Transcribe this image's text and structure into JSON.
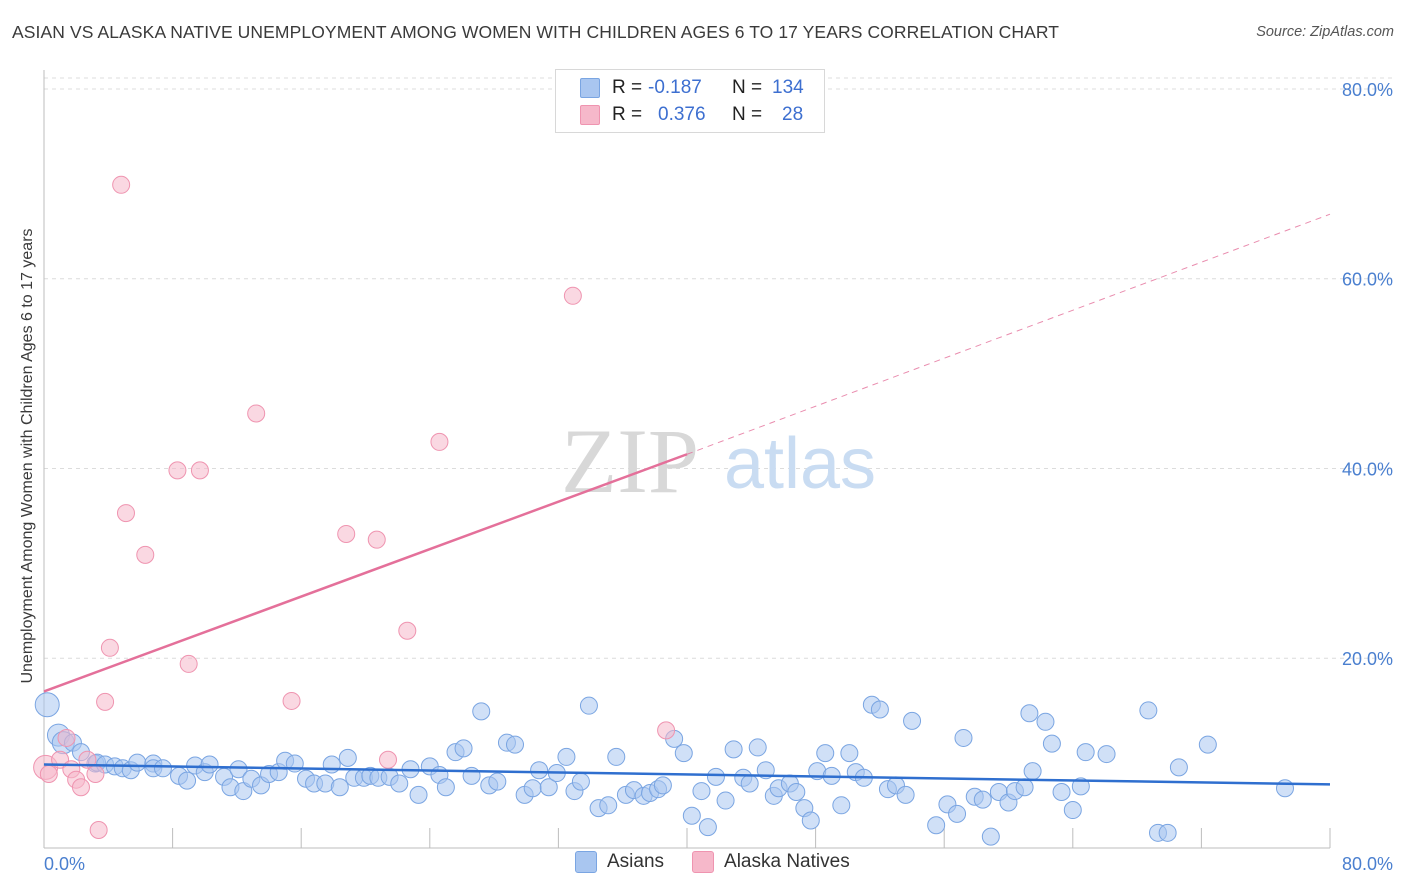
{
  "title": "ASIAN VS ALASKA NATIVE UNEMPLOYMENT AMONG WOMEN WITH CHILDREN AGES 6 TO 17 YEARS CORRELATION CHART",
  "source": "Source: ZipAtlas.com",
  "watermark": {
    "zip": "ZIP",
    "atlas": "atlas"
  },
  "legend": {
    "r_label": "R =",
    "n_label": "N =",
    "rows": [
      {
        "name": "Asians",
        "r": "-0.187",
        "n": "134",
        "color": "#a9c6f0"
      },
      {
        "name": "Alaska Natives",
        "r": "0.376",
        "n": "28",
        "color": "#f6b8ca"
      }
    ]
  },
  "colors": {
    "asian_fill": "#a9c6f0",
    "asian_stroke": "#7aa5e2",
    "asian_line": "#2f6fcf",
    "native_fill": "#f6b8ca",
    "native_stroke": "#ef94b0",
    "native_line": "#e4709a",
    "tick_text": "#4a7fcf",
    "grid": "#dcdcdc"
  },
  "chart_data": {
    "type": "scatter",
    "title": "ASIAN VS ALASKA NATIVE UNEMPLOYMENT AMONG WOMEN WITH CHILDREN AGES 6 TO 17 YEARS CORRELATION CHART",
    "xlabel": "",
    "ylabel": "Unemployment Among Women with Children Ages 6 to 17 years",
    "xlim": [
      0,
      80
    ],
    "ylim": [
      0,
      82
    ],
    "x_tick_labels": [
      "0.0%",
      "80.0%"
    ],
    "y_ticks": [
      20,
      40,
      60,
      80
    ],
    "y_tick_labels": [
      "20.0%",
      "40.0%",
      "60.0%",
      "80.0%"
    ],
    "series": [
      {
        "name": "Asians",
        "trend": {
          "x0": 0,
          "y0": 8.8,
          "x1": 80,
          "y1": 6.7
        },
        "points": [
          [
            0.2,
            15.1
          ],
          [
            0.9,
            11.9
          ],
          [
            1.2,
            11.1
          ],
          [
            1.8,
            11.1
          ],
          [
            2.3,
            10.1
          ],
          [
            3.2,
            8.9
          ],
          [
            3.3,
            9.0
          ],
          [
            3.8,
            8.8
          ],
          [
            4.4,
            8.6
          ],
          [
            4.9,
            8.4
          ],
          [
            5.4,
            8.2
          ],
          [
            5.8,
            9.0
          ],
          [
            6.8,
            8.9
          ],
          [
            6.8,
            8.4
          ],
          [
            7.4,
            8.4
          ],
          [
            8.4,
            7.6
          ],
          [
            8.9,
            7.1
          ],
          [
            9.4,
            8.7
          ],
          [
            10.0,
            8.0
          ],
          [
            10.3,
            8.8
          ],
          [
            11.2,
            7.5
          ],
          [
            11.6,
            6.4
          ],
          [
            12.1,
            8.3
          ],
          [
            12.4,
            6.0
          ],
          [
            12.9,
            7.3
          ],
          [
            13.5,
            6.6
          ],
          [
            14.0,
            7.8
          ],
          [
            14.6,
            8.0
          ],
          [
            15.0,
            9.2
          ],
          [
            15.6,
            8.9
          ],
          [
            16.3,
            7.3
          ],
          [
            16.8,
            6.8
          ],
          [
            17.5,
            6.8
          ],
          [
            17.9,
            8.8
          ],
          [
            18.4,
            6.4
          ],
          [
            18.9,
            9.5
          ],
          [
            19.3,
            7.4
          ],
          [
            19.9,
            7.4
          ],
          [
            20.3,
            7.6
          ],
          [
            20.8,
            7.4
          ],
          [
            21.5,
            7.5
          ],
          [
            22.1,
            6.8
          ],
          [
            22.8,
            8.3
          ],
          [
            23.3,
            5.6
          ],
          [
            24.0,
            8.6
          ],
          [
            24.6,
            7.7
          ],
          [
            25.0,
            6.4
          ],
          [
            25.6,
            10.1
          ],
          [
            26.1,
            10.5
          ],
          [
            26.6,
            7.6
          ],
          [
            27.2,
            14.4
          ],
          [
            27.7,
            6.6
          ],
          [
            28.2,
            7.0
          ],
          [
            28.8,
            11.1
          ],
          [
            29.3,
            10.9
          ],
          [
            29.9,
            5.6
          ],
          [
            30.4,
            6.3
          ],
          [
            30.8,
            8.2
          ],
          [
            31.4,
            6.4
          ],
          [
            31.9,
            7.9
          ],
          [
            32.5,
            9.6
          ],
          [
            33.0,
            6.0
          ],
          [
            33.4,
            7.0
          ],
          [
            33.9,
            15.0
          ],
          [
            34.5,
            4.2
          ],
          [
            35.1,
            4.5
          ],
          [
            35.6,
            9.6
          ],
          [
            36.2,
            5.6
          ],
          [
            36.7,
            6.1
          ],
          [
            37.3,
            5.5
          ],
          [
            37.7,
            5.8
          ],
          [
            38.2,
            6.2
          ],
          [
            38.5,
            6.6
          ],
          [
            39.2,
            11.5
          ],
          [
            39.8,
            10.0
          ],
          [
            40.3,
            3.4
          ],
          [
            40.9,
            6.0
          ],
          [
            41.3,
            2.2
          ],
          [
            41.8,
            7.5
          ],
          [
            42.4,
            5.0
          ],
          [
            42.9,
            10.4
          ],
          [
            43.5,
            7.4
          ],
          [
            43.9,
            6.8
          ],
          [
            44.4,
            10.6
          ],
          [
            44.9,
            8.2
          ],
          [
            45.4,
            5.5
          ],
          [
            45.7,
            6.3
          ],
          [
            46.4,
            6.8
          ],
          [
            46.8,
            5.9
          ],
          [
            47.3,
            4.2
          ],
          [
            47.7,
            2.9
          ],
          [
            48.1,
            8.1
          ],
          [
            48.6,
            10.0
          ],
          [
            49.0,
            7.6
          ],
          [
            49.6,
            4.5
          ],
          [
            50.1,
            10.0
          ],
          [
            50.5,
            8.0
          ],
          [
            51.0,
            7.4
          ],
          [
            51.5,
            15.1
          ],
          [
            52.0,
            14.6
          ],
          [
            52.5,
            6.2
          ],
          [
            53.0,
            6.6
          ],
          [
            53.6,
            5.6
          ],
          [
            54.0,
            13.4
          ],
          [
            55.5,
            2.4
          ],
          [
            56.2,
            4.6
          ],
          [
            56.8,
            3.6
          ],
          [
            57.2,
            11.6
          ],
          [
            57.9,
            5.4
          ],
          [
            58.4,
            5.1
          ],
          [
            58.9,
            1.2
          ],
          [
            59.4,
            5.9
          ],
          [
            60.0,
            4.8
          ],
          [
            60.4,
            6.0
          ],
          [
            61.0,
            6.4
          ],
          [
            61.3,
            14.2
          ],
          [
            61.5,
            8.1
          ],
          [
            62.3,
            13.3
          ],
          [
            62.7,
            11.0
          ],
          [
            63.3,
            5.9
          ],
          [
            64.0,
            4.0
          ],
          [
            64.5,
            6.5
          ],
          [
            64.8,
            10.1
          ],
          [
            66.1,
            9.9
          ],
          [
            68.7,
            14.5
          ],
          [
            69.3,
            1.6
          ],
          [
            69.9,
            1.6
          ],
          [
            70.6,
            8.5
          ],
          [
            72.4,
            10.9
          ],
          [
            77.2,
            6.3
          ]
        ]
      },
      {
        "name": "Alaska Natives",
        "trend": {
          "x0": 0,
          "y0": 16.5,
          "x1": 40,
          "y1": 41.5,
          "dashed_to_x": 80,
          "dashed_to_y": 66.8
        },
        "points": [
          [
            0.1,
            8.5
          ],
          [
            0.3,
            7.8
          ],
          [
            1.0,
            9.3
          ],
          [
            1.4,
            11.6
          ],
          [
            1.7,
            8.3
          ],
          [
            2.0,
            7.2
          ],
          [
            2.3,
            6.4
          ],
          [
            2.7,
            9.3
          ],
          [
            3.2,
            7.8
          ],
          [
            3.4,
            1.9
          ],
          [
            3.8,
            15.4
          ],
          [
            4.1,
            21.1
          ],
          [
            4.8,
            69.9
          ],
          [
            5.1,
            35.3
          ],
          [
            6.3,
            30.9
          ],
          [
            8.3,
            39.8
          ],
          [
            9.0,
            19.4
          ],
          [
            9.7,
            39.8
          ],
          [
            13.2,
            45.8
          ],
          [
            15.4,
            15.5
          ],
          [
            18.8,
            33.1
          ],
          [
            20.7,
            32.5
          ],
          [
            21.4,
            9.3
          ],
          [
            22.6,
            22.9
          ],
          [
            24.6,
            42.8
          ],
          [
            32.9,
            58.2
          ],
          [
            38.7,
            12.4
          ]
        ]
      }
    ]
  }
}
